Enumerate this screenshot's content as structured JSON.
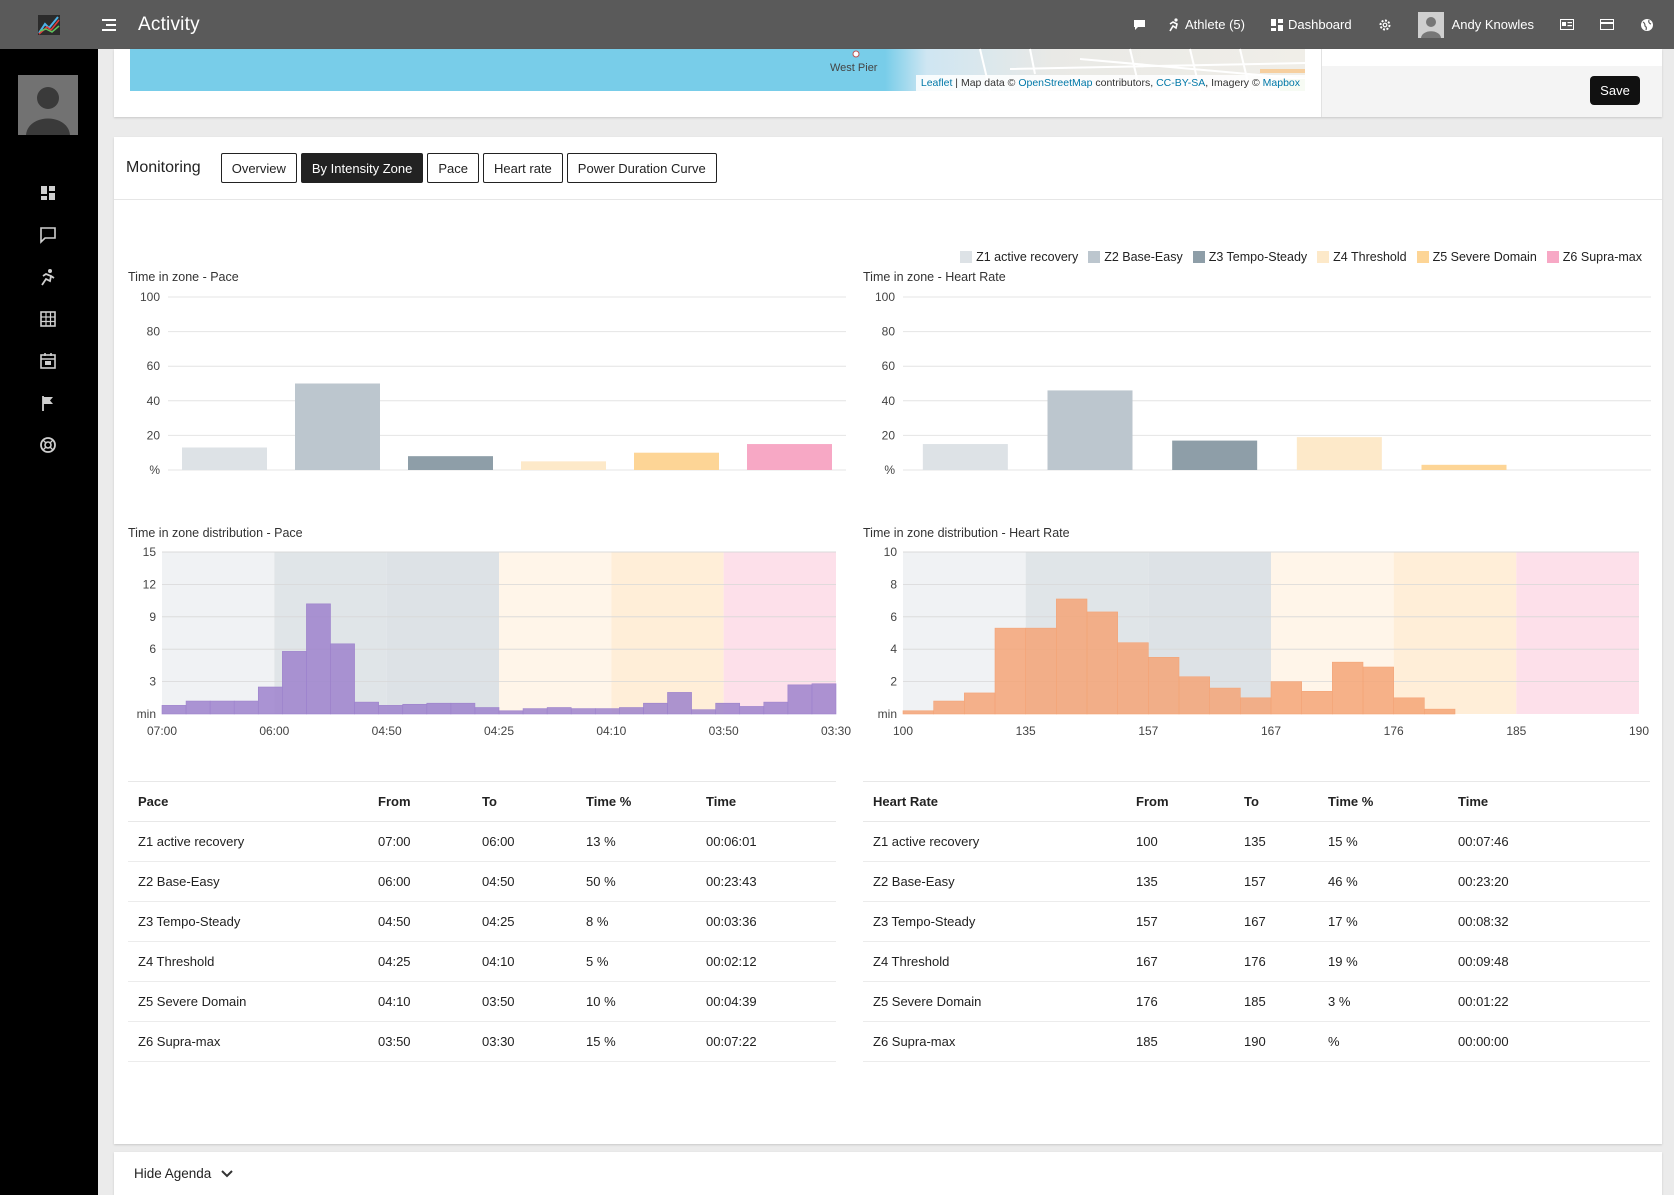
{
  "header": {
    "title": "Activity",
    "athlete_label": "Athlete (5)",
    "dashboard_label": "Dashboard",
    "user_name": "Andy Knowles"
  },
  "map": {
    "place_label": "West Pier",
    "attribution": {
      "leaflet": "Leaflet",
      "sep1": " | Map data © ",
      "osm": "OpenStreetMap",
      "contrib": " contributors, ",
      "ccbysa": "CC-BY-SA",
      "imagery": ", Imagery © ",
      "mapbox": "Mapbox"
    },
    "save_label": "Save"
  },
  "monitoring": {
    "title": "Monitoring",
    "tabs": [
      {
        "label": "Overview",
        "active": false
      },
      {
        "label": "By Intensity Zone",
        "active": true
      },
      {
        "label": "Pace",
        "active": false
      },
      {
        "label": "Heart rate",
        "active": false
      },
      {
        "label": "Power Duration Curve",
        "active": false
      }
    ]
  },
  "zones": [
    {
      "label": "Z1 active recovery",
      "color": "#dde2e6",
      "band": "#f0f2f4"
    },
    {
      "label": "Z2 Base-Easy",
      "color": "#bcc6ce",
      "band": "#e0e5e8"
    },
    {
      "label": "Z3 Tempo-Steady",
      "color": "#8e9ea8",
      "band": "#dde2e6"
    },
    {
      "label": "Z4 Threshold",
      "color": "#fde9c9",
      "band": "#fff5e9"
    },
    {
      "label": "Z5 Severe Domain",
      "color": "#fdd596",
      "band": "#ffeed8"
    },
    {
      "label": "Z6 Supra-max",
      "color": "#f7a8c5",
      "band": "#fde0ea"
    }
  ],
  "chart_data": [
    {
      "type": "bar",
      "title": "Time in zone - Pace",
      "ylabel": "%",
      "categories": [
        "Z1 active recovery",
        "Z2 Base-Easy",
        "Z3 Tempo-Steady",
        "Z4 Threshold",
        "Z5 Severe Domain",
        "Z6 Supra-max"
      ],
      "values": [
        13,
        50,
        8,
        5,
        10,
        15
      ],
      "yticks": [
        "20",
        "40",
        "60",
        "80",
        "100"
      ],
      "ylim": [
        0,
        100
      ]
    },
    {
      "type": "bar",
      "title": "Time in zone - Heart Rate",
      "ylabel": "%",
      "categories": [
        "Z1 active recovery",
        "Z2 Base-Easy",
        "Z3 Tempo-Steady",
        "Z4 Threshold",
        "Z5 Severe Domain",
        "Z6 Supra-max"
      ],
      "values": [
        15,
        46,
        17,
        19,
        3,
        0
      ],
      "yticks": [
        "20",
        "40",
        "60",
        "80",
        "100"
      ],
      "ylim": [
        0,
        100
      ]
    },
    {
      "type": "bar",
      "title": "Time in zone distribution - Pace",
      "ylabel": "min",
      "yticks": [
        "3",
        "6",
        "9",
        "12",
        "15"
      ],
      "ylim": [
        0,
        15
      ],
      "xticks": [
        "07:00",
        "06:00",
        "04:50",
        "04:25",
        "04:10",
        "03:50",
        "03:30"
      ],
      "values": [
        0.8,
        1.2,
        1.2,
        1.2,
        2.5,
        5.8,
        10.2,
        6.5,
        1.1,
        0.8,
        0.9,
        1.0,
        1.0,
        0.6,
        0.3,
        0.5,
        0.6,
        0.5,
        0.5,
        0.6,
        1.0,
        2.0,
        0.4,
        1.0,
        0.7,
        1.1,
        2.7,
        2.8
      ]
    },
    {
      "type": "bar",
      "title": "Time in zone distribution - Heart Rate",
      "ylabel": "min",
      "yticks": [
        "2",
        "4",
        "6",
        "8",
        "10"
      ],
      "ylim": [
        0,
        10
      ],
      "xticks": [
        "100",
        "135",
        "157",
        "167",
        "176",
        "185",
        "190"
      ],
      "values": [
        0.2,
        0.8,
        1.3,
        5.3,
        5.3,
        7.1,
        6.3,
        4.4,
        3.5,
        2.3,
        1.6,
        1.0,
        2.0,
        1.4,
        3.2,
        2.9,
        1.0,
        0.3,
        0,
        0,
        0,
        0,
        0,
        0
      ]
    }
  ],
  "pace_table": {
    "headers": [
      "Pace",
      "From",
      "To",
      "Time %",
      "Time"
    ],
    "rows": [
      [
        "Z1 active recovery",
        "07:00",
        "06:00",
        "13 %",
        "00:06:01"
      ],
      [
        "Z2 Base-Easy",
        "06:00",
        "04:50",
        "50 %",
        "00:23:43"
      ],
      [
        "Z3 Tempo-Steady",
        "04:50",
        "04:25",
        "8 %",
        "00:03:36"
      ],
      [
        "Z4 Threshold",
        "04:25",
        "04:10",
        "5 %",
        "00:02:12"
      ],
      [
        "Z5 Severe Domain",
        "04:10",
        "03:50",
        "10 %",
        "00:04:39"
      ],
      [
        "Z6 Supra-max",
        "03:50",
        "03:30",
        "15 %",
        "00:07:22"
      ]
    ]
  },
  "hr_table": {
    "headers": [
      "Heart Rate",
      "From",
      "To",
      "Time %",
      "Time"
    ],
    "rows": [
      [
        "Z1 active recovery",
        "100",
        "135",
        "15 %",
        "00:07:46"
      ],
      [
        "Z2 Base-Easy",
        "135",
        "157",
        "46 %",
        "00:23:20"
      ],
      [
        "Z3 Tempo-Steady",
        "157",
        "167",
        "17 %",
        "00:08:32"
      ],
      [
        "Z4 Threshold",
        "167",
        "176",
        "19 %",
        "00:09:48"
      ],
      [
        "Z5 Severe Domain",
        "176",
        "185",
        "3 %",
        "00:01:22"
      ],
      [
        "Z6 Supra-max",
        "185",
        "190",
        " %",
        "00:00:00"
      ]
    ]
  },
  "agenda": {
    "toggle_label": "Hide Agenda"
  },
  "colors": {
    "pace_hist": "#9d82cc",
    "hr_hist": "#f4a477"
  }
}
